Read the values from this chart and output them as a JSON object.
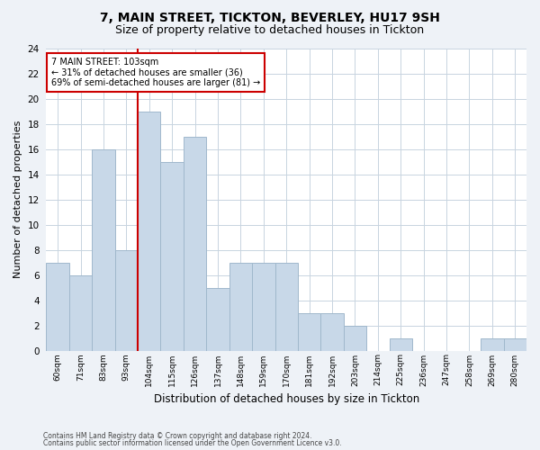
{
  "title": "7, MAIN STREET, TICKTON, BEVERLEY, HU17 9SH",
  "subtitle": "Size of property relative to detached houses in Tickton",
  "xlabel": "Distribution of detached houses by size in Tickton",
  "ylabel": "Number of detached properties",
  "categories": [
    "60sqm",
    "71sqm",
    "83sqm",
    "93sqm",
    "104sqm",
    "115sqm",
    "126sqm",
    "137sqm",
    "148sqm",
    "159sqm",
    "170sqm",
    "181sqm",
    "192sqm",
    "203sqm",
    "214sqm",
    "225sqm",
    "236sqm",
    "247sqm",
    "258sqm",
    "269sqm",
    "280sqm"
  ],
  "values": [
    7,
    6,
    16,
    8,
    19,
    15,
    17,
    5,
    7,
    7,
    7,
    3,
    3,
    2,
    0,
    1,
    0,
    0,
    0,
    1,
    1
  ],
  "bar_color": "#c8d8e8",
  "bar_edge_color": "#a0b8cc",
  "highlight_line_index": 4,
  "ylim": [
    0,
    24
  ],
  "yticks": [
    0,
    2,
    4,
    6,
    8,
    10,
    12,
    14,
    16,
    18,
    20,
    22,
    24
  ],
  "annotation_title": "7 MAIN STREET: 103sqm",
  "annotation_line1": "← 31% of detached houses are smaller (36)",
  "annotation_line2": "69% of semi-detached houses are larger (81) →",
  "footer_line1": "Contains HM Land Registry data © Crown copyright and database right 2024.",
  "footer_line2": "Contains public sector information licensed under the Open Government Licence v3.0.",
  "bg_color": "#eef2f7",
  "plot_bg_color": "#ffffff",
  "grid_color": "#c8d4e0",
  "annotation_box_color": "#ffffff",
  "annotation_box_edge": "#cc0000",
  "highlight_line_color": "#cc0000",
  "title_fontsize": 10,
  "subtitle_fontsize": 9
}
